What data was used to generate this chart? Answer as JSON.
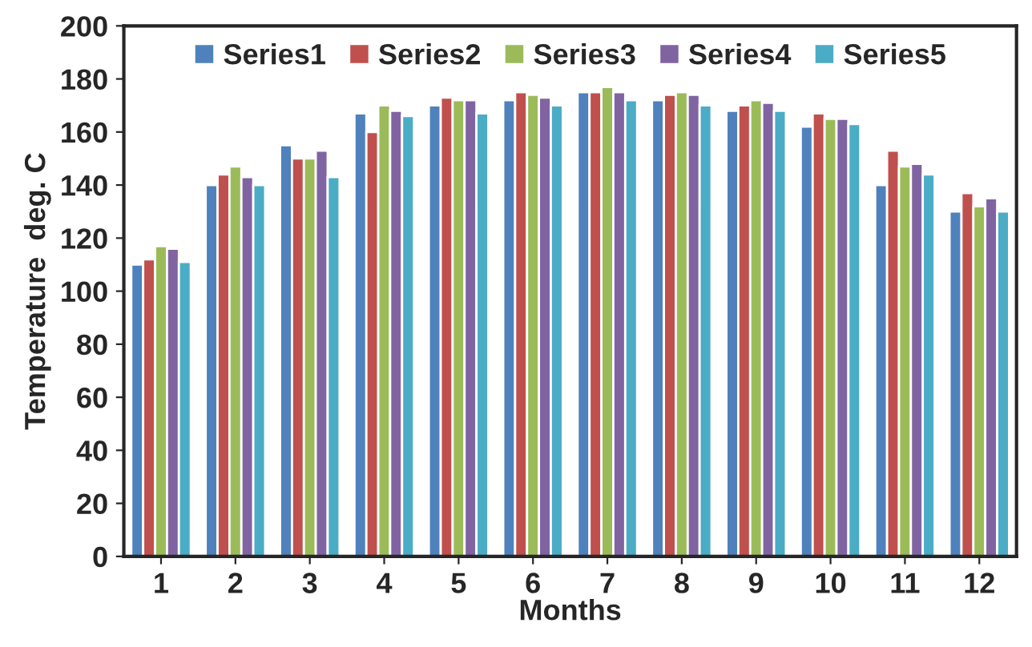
{
  "chart_data": {
    "type": "bar",
    "xlabel": "Months",
    "ylabel": "Temperature  deg. C",
    "categories": [
      "1",
      "2",
      "3",
      "4",
      "5",
      "6",
      "7",
      "8",
      "9",
      "10",
      "11",
      "12"
    ],
    "series": [
      {
        "name": "Series1",
        "color": "#4f81bd",
        "values": [
          110,
          140,
          155,
          167,
          170,
          172,
          175,
          172,
          168,
          162,
          140,
          130
        ]
      },
      {
        "name": "Series2",
        "color": "#c0504d",
        "values": [
          112,
          144,
          150,
          160,
          173,
          175,
          175,
          174,
          170,
          167,
          153,
          137
        ]
      },
      {
        "name": "Series3",
        "color": "#9bbb59",
        "values": [
          117,
          147,
          150,
          170,
          172,
          174,
          177,
          175,
          172,
          165,
          147,
          132
        ]
      },
      {
        "name": "Series4",
        "color": "#8064a2",
        "values": [
          116,
          143,
          153,
          168,
          172,
          173,
          175,
          174,
          171,
          165,
          148,
          135
        ]
      },
      {
        "name": "Series5",
        "color": "#4bacc6",
        "values": [
          111,
          140,
          143,
          166,
          167,
          170,
          172,
          170,
          168,
          163,
          144,
          130
        ]
      }
    ],
    "ylim": [
      0,
      200
    ],
    "yticks": [
      0,
      20,
      40,
      60,
      80,
      100,
      120,
      140,
      160,
      180,
      200
    ],
    "grid": false,
    "legend": "top"
  }
}
